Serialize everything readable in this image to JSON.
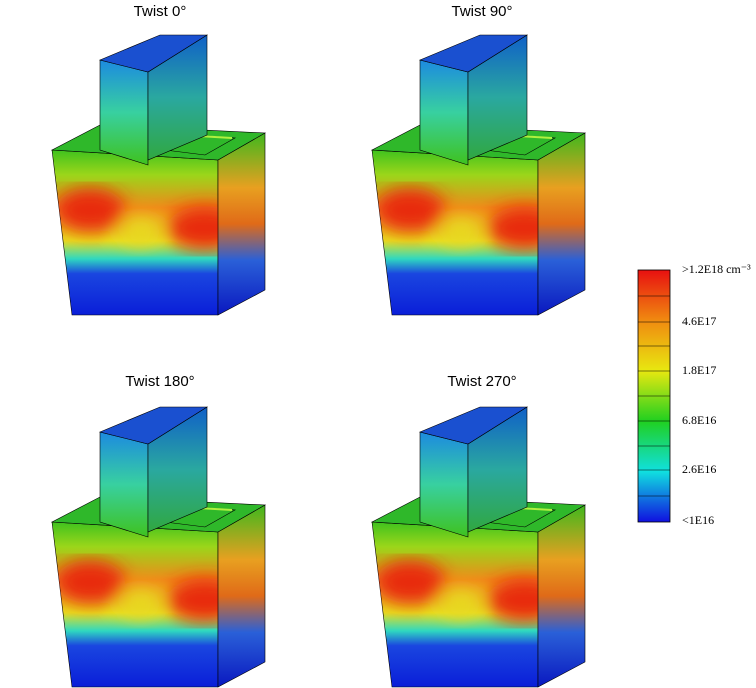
{
  "panels": [
    {
      "title": "Twist 0°"
    },
    {
      "title": "Twist 90°"
    },
    {
      "title": "Twist 180°"
    },
    {
      "title": "Twist 270°"
    }
  ],
  "colorbar": {
    "labels": [
      ">1.2E18 cm⁻³",
      "4.6E17",
      "1.8E17",
      "6.8E16",
      "2.6E16",
      "<1E16"
    ]
  }
}
